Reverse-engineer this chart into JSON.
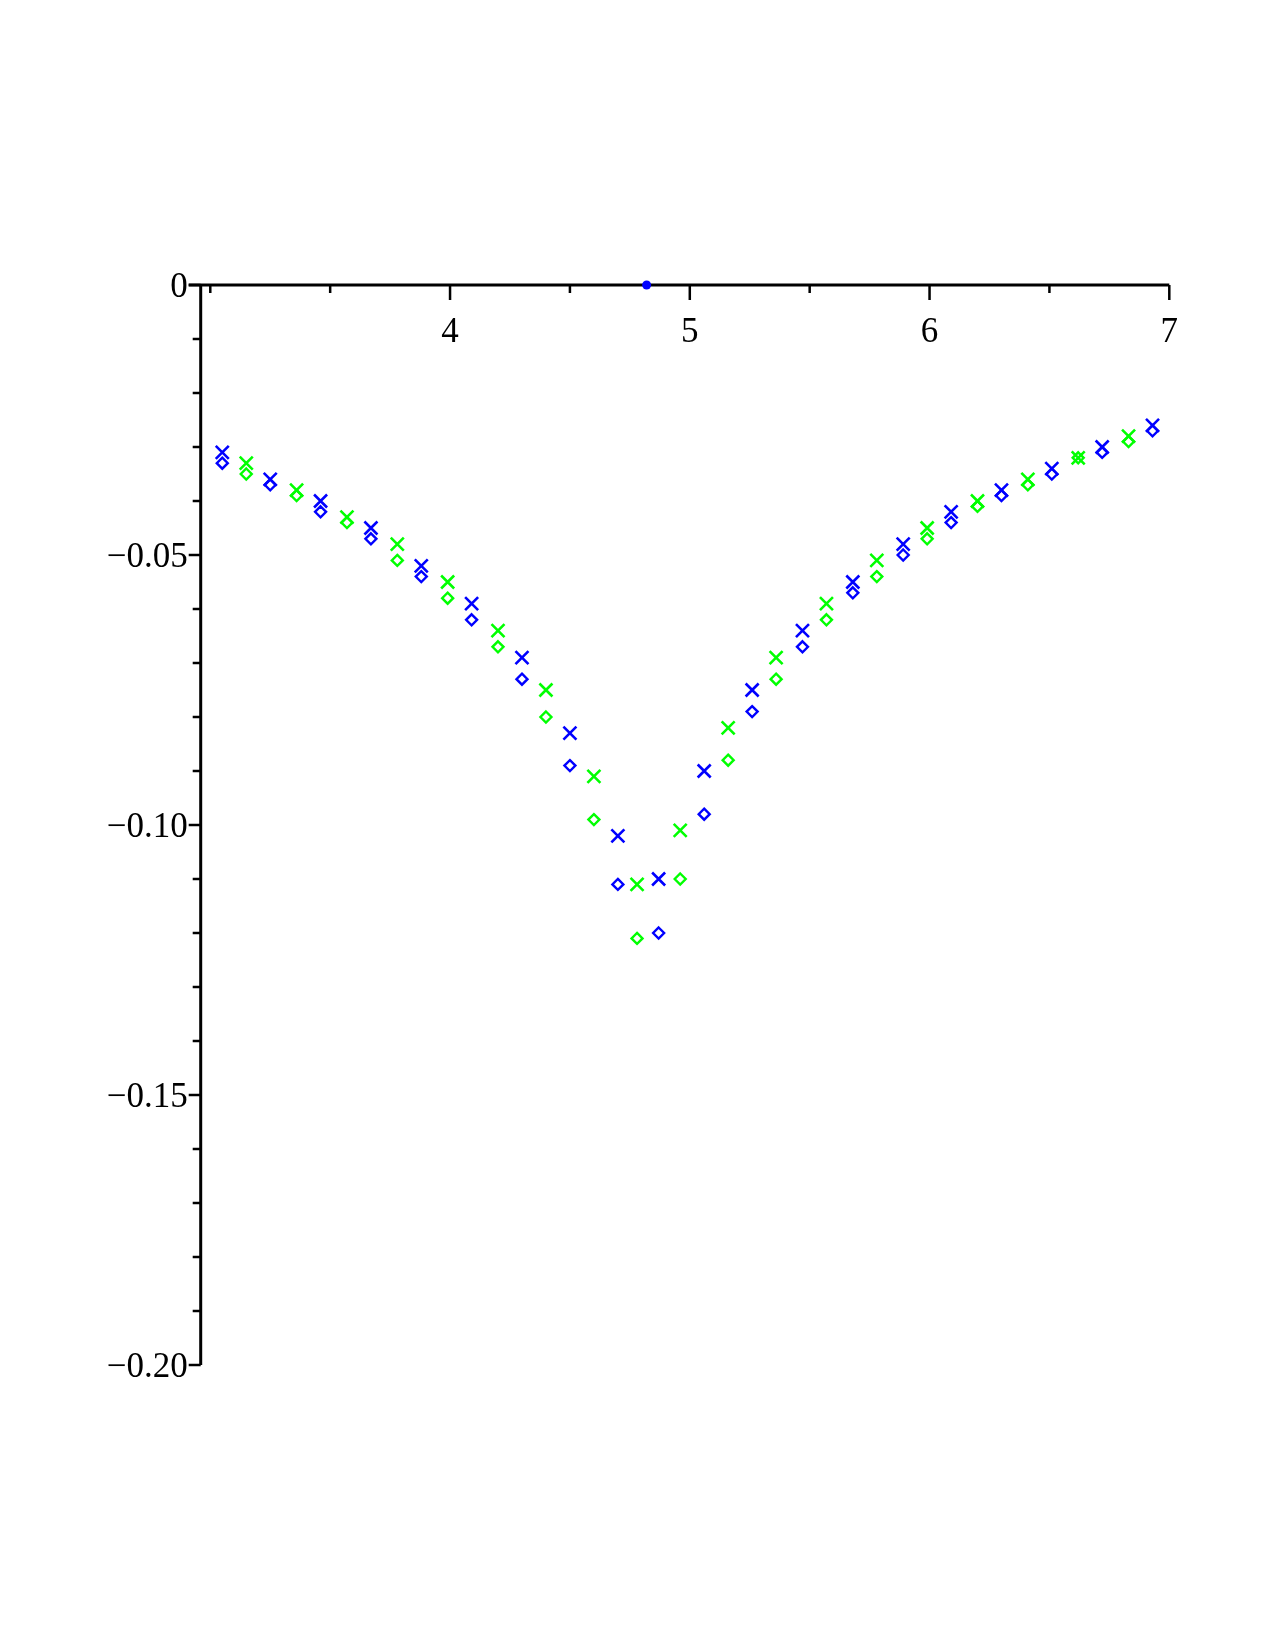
{
  "chart_data": {
    "type": "scatter",
    "xlim": [
      2.96,
      7
    ],
    "ylim": [
      -0.2,
      0
    ],
    "xticks": [
      {
        "value": 3,
        "label": null
      },
      {
        "value": 3.5,
        "label": null
      },
      4,
      {
        "value": 4.5,
        "label": null
      },
      5,
      {
        "value": 5.5,
        "label": null
      },
      6,
      {
        "value": 6.5,
        "label": null
      },
      7
    ],
    "yticks": [
      0,
      {
        "value": -0.01,
        "label": null
      },
      {
        "value": -0.02,
        "label": null
      },
      {
        "value": -0.03,
        "label": null
      },
      {
        "value": -0.04,
        "label": null
      },
      {
        "value": -0.05,
        "label": "−0.05"
      },
      {
        "value": -0.06,
        "label": null
      },
      {
        "value": -0.07,
        "label": null
      },
      {
        "value": -0.08,
        "label": null
      },
      {
        "value": -0.09,
        "label": null
      },
      {
        "value": -0.1,
        "label": "−0.10"
      },
      {
        "value": -0.11,
        "label": null
      },
      {
        "value": -0.12,
        "label": null
      },
      {
        "value": -0.13,
        "label": null
      },
      {
        "value": -0.14,
        "label": null
      },
      {
        "value": -0.15,
        "label": "−0.15"
      },
      {
        "value": -0.16,
        "label": null
      },
      {
        "value": -0.17,
        "label": null
      },
      {
        "value": -0.18,
        "label": null
      },
      {
        "value": -0.19,
        "label": null
      },
      {
        "value": -0.2,
        "label": "−0.20"
      }
    ],
    "series": [
      {
        "color": "#0000ff",
        "marker": "cross",
        "x": [
          3.05,
          3.25,
          3.46,
          3.67,
          3.88,
          4.09,
          4.3,
          4.5,
          4.7,
          4.87,
          5.06,
          5.26,
          5.47,
          5.68,
          5.89,
          6.09,
          6.3,
          6.51,
          6.72,
          6.93
        ],
        "values": [
          -0.031,
          -0.036,
          -0.04,
          -0.045,
          -0.052,
          -0.059,
          -0.069,
          -0.083,
          -0.102,
          -0.11,
          -0.09,
          -0.075,
          -0.064,
          -0.055,
          -0.048,
          -0.042,
          -0.038,
          -0.034,
          -0.03,
          -0.026
        ]
      },
      {
        "color": "#0000ff",
        "marker": "diamond",
        "x": [
          3.05,
          3.25,
          3.46,
          3.67,
          3.88,
          4.09,
          4.3,
          4.5,
          4.7,
          4.87,
          5.06,
          5.26,
          5.47,
          5.68,
          5.89,
          6.09,
          6.3,
          6.51,
          6.72,
          6.93
        ],
        "values": [
          -0.033,
          -0.037,
          -0.042,
          -0.047,
          -0.054,
          -0.062,
          -0.073,
          -0.089,
          -0.111,
          -0.12,
          -0.098,
          -0.079,
          -0.067,
          -0.057,
          -0.05,
          -0.044,
          -0.039,
          -0.035,
          -0.031,
          -0.027
        ]
      },
      {
        "color": "#00ff00",
        "marker": "cross",
        "x": [
          3.15,
          3.36,
          3.57,
          3.78,
          3.99,
          4.2,
          4.4,
          4.6,
          4.78,
          4.96,
          5.16,
          5.36,
          5.57,
          5.78,
          5.99,
          6.2,
          6.41,
          6.62,
          6.83
        ],
        "values": [
          -0.033,
          -0.038,
          -0.043,
          -0.048,
          -0.055,
          -0.064,
          -0.075,
          -0.091,
          -0.111,
          -0.101,
          -0.082,
          -0.069,
          -0.059,
          -0.051,
          -0.045,
          -0.04,
          -0.036,
          -0.032,
          -0.028
        ]
      },
      {
        "color": "#00ff00",
        "marker": "diamond",
        "x": [
          3.15,
          3.36,
          3.57,
          3.78,
          3.99,
          4.2,
          4.4,
          4.6,
          4.78,
          4.96,
          5.16,
          5.36,
          5.57,
          5.78,
          5.99,
          6.2,
          6.41,
          6.62,
          6.83
        ],
        "values": [
          -0.035,
          -0.039,
          -0.044,
          -0.051,
          -0.058,
          -0.067,
          -0.08,
          -0.099,
          -0.121,
          -0.11,
          -0.088,
          -0.073,
          -0.062,
          -0.054,
          -0.047,
          -0.041,
          -0.037,
          -0.032,
          -0.029
        ]
      },
      {
        "color": "#0000ff",
        "marker": "circle",
        "x": [
          4.82
        ],
        "values": [
          0
        ]
      }
    ]
  }
}
